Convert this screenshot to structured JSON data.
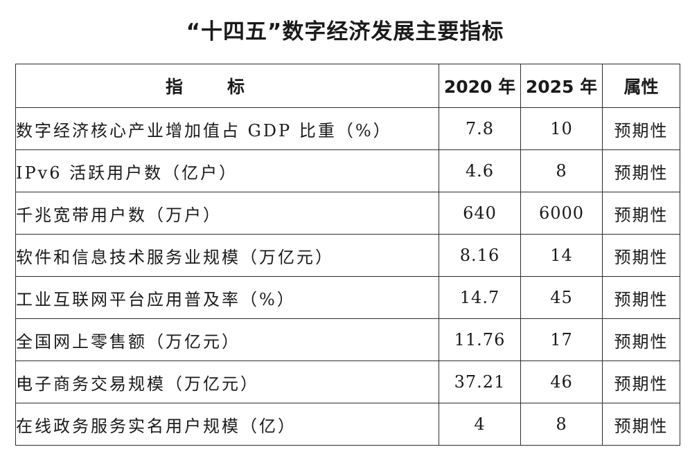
{
  "title": "“十四五”数字经济发展主要指标",
  "table": {
    "headers": {
      "indicator": "指标",
      "year_2020": "2020 年",
      "year_2025": "2025 年",
      "attribute": "属性"
    },
    "rows": [
      {
        "indicator": "数字经济核心产业增加值占 GDP 比重（%）",
        "v2020": "7.8",
        "v2025": "10",
        "attribute": "预期性"
      },
      {
        "indicator": "IPv6 活跃用户数（亿户）",
        "v2020": "4.6",
        "v2025": "8",
        "attribute": "预期性"
      },
      {
        "indicator": "千兆宽带用户数（万户）",
        "v2020": "640",
        "v2025": "6000",
        "attribute": "预期性"
      },
      {
        "indicator": "软件和信息技术服务业规模（万亿元）",
        "v2020": "8.16",
        "v2025": "14",
        "attribute": "预期性"
      },
      {
        "indicator": "工业互联网平台应用普及率（%）",
        "v2020": "14.7",
        "v2025": "45",
        "attribute": "预期性"
      },
      {
        "indicator": "全国网上零售额（万亿元）",
        "v2020": "11.76",
        "v2025": "17",
        "attribute": "预期性"
      },
      {
        "indicator": "电子商务交易规模（万亿元）",
        "v2020": "37.21",
        "v2025": "46",
        "attribute": "预期性"
      },
      {
        "indicator": "在线政务服务实名用户规模（亿）",
        "v2020": "4",
        "v2025": "8",
        "attribute": "预期性"
      }
    ]
  }
}
